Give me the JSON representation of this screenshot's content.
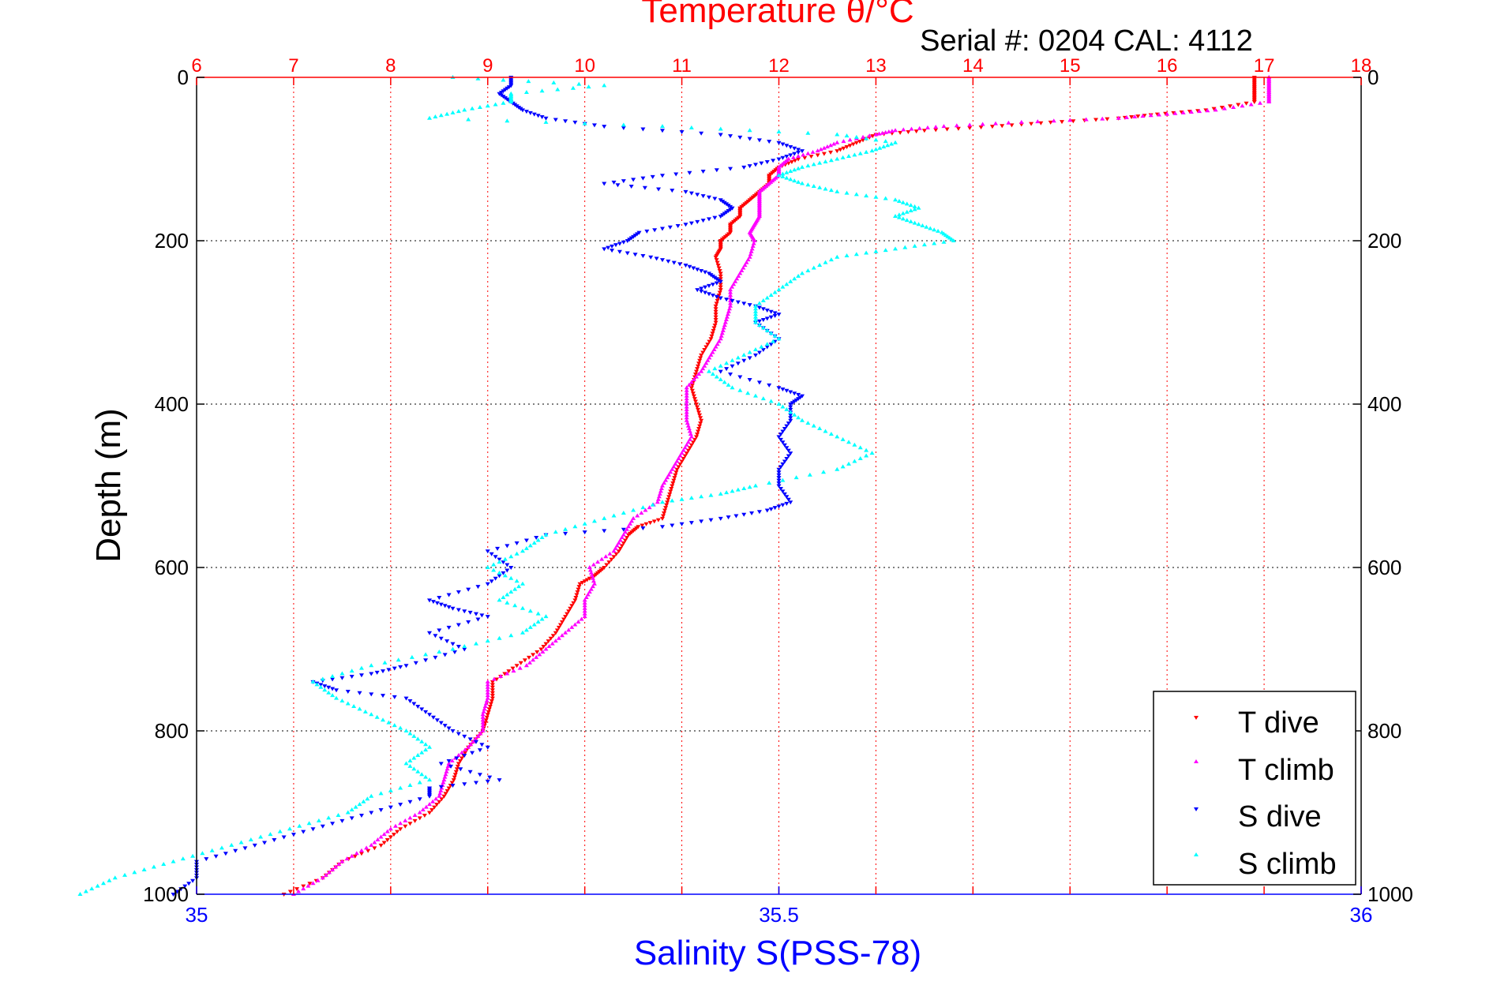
{
  "chart_data": {
    "type": "scatter",
    "title": "Temperature θ/°C",
    "subtitle": "Serial #: 0204  CAL: 4112",
    "ylabel": "Depth (m)",
    "xlabel_top": "Temperature θ/°C",
    "xlabel_bottom": "Salinity S(PSS-78)",
    "top_axis": {
      "quantity": "temperature",
      "range": [
        6,
        18
      ],
      "ticks": [
        "6",
        "7",
        "8",
        "9",
        "10",
        "11",
        "12",
        "13",
        "14",
        "15",
        "16",
        "17",
        "18"
      ],
      "color": "#ff0000"
    },
    "bottom_axis": {
      "quantity": "salinity",
      "range": [
        35,
        36
      ],
      "ticks": [
        "35",
        "35.5",
        "36"
      ],
      "color": "#0000ff"
    },
    "y_axis": {
      "range": [
        0,
        1000
      ],
      "inverted": true,
      "ticks": [
        "0",
        "200",
        "400",
        "600",
        "800",
        "1000"
      ]
    },
    "grid": true,
    "legend_position": "bottom-right",
    "series": [
      {
        "name": "T dive",
        "axis": "temperature",
        "color": "#ff0000",
        "marker": "triangle-down",
        "points": [
          [
            0,
            16.9
          ],
          [
            10,
            16.9
          ],
          [
            20,
            16.9
          ],
          [
            30,
            16.9
          ],
          [
            40,
            16.4
          ],
          [
            45,
            15.9
          ],
          [
            50,
            15.5
          ],
          [
            55,
            14.8
          ],
          [
            60,
            14.2
          ],
          [
            65,
            13.5
          ],
          [
            70,
            13.0
          ],
          [
            80,
            12.8
          ],
          [
            90,
            12.6
          ],
          [
            100,
            12.2
          ],
          [
            110,
            12.0
          ],
          [
            120,
            11.9
          ],
          [
            130,
            11.9
          ],
          [
            140,
            11.8
          ],
          [
            150,
            11.7
          ],
          [
            160,
            11.6
          ],
          [
            170,
            11.6
          ],
          [
            180,
            11.5
          ],
          [
            190,
            11.5
          ],
          [
            200,
            11.4
          ],
          [
            210,
            11.4
          ],
          [
            220,
            11.35
          ],
          [
            240,
            11.4
          ],
          [
            260,
            11.4
          ],
          [
            280,
            11.35
          ],
          [
            300,
            11.35
          ],
          [
            320,
            11.3
          ],
          [
            340,
            11.2
          ],
          [
            360,
            11.15
          ],
          [
            380,
            11.1
          ],
          [
            400,
            11.15
          ],
          [
            420,
            11.2
          ],
          [
            440,
            11.15
          ],
          [
            460,
            11.05
          ],
          [
            480,
            10.95
          ],
          [
            500,
            10.9
          ],
          [
            520,
            10.85
          ],
          [
            540,
            10.8
          ],
          [
            550,
            10.55
          ],
          [
            560,
            10.45
          ],
          [
            580,
            10.35
          ],
          [
            600,
            10.2
          ],
          [
            610,
            10.1
          ],
          [
            620,
            9.95
          ],
          [
            640,
            9.9
          ],
          [
            660,
            9.8
          ],
          [
            680,
            9.7
          ],
          [
            700,
            9.55
          ],
          [
            720,
            9.3
          ],
          [
            740,
            9.05
          ],
          [
            760,
            9.05
          ],
          [
            780,
            9.0
          ],
          [
            800,
            8.95
          ],
          [
            820,
            8.8
          ],
          [
            840,
            8.7
          ],
          [
            860,
            8.65
          ],
          [
            880,
            8.55
          ],
          [
            900,
            8.4
          ],
          [
            920,
            8.1
          ],
          [
            940,
            7.9
          ],
          [
            960,
            7.5
          ],
          [
            980,
            7.3
          ],
          [
            1000,
            6.9
          ]
        ]
      },
      {
        "name": "T climb",
        "axis": "temperature",
        "color": "#ff00ff",
        "marker": "triangle-up",
        "points": [
          [
            0,
            17.05
          ],
          [
            10,
            17.05
          ],
          [
            20,
            17.05
          ],
          [
            30,
            17.05
          ],
          [
            40,
            16.5
          ],
          [
            45,
            16.0
          ],
          [
            50,
            15.5
          ],
          [
            55,
            14.5
          ],
          [
            60,
            13.7
          ],
          [
            65,
            13.2
          ],
          [
            70,
            13.0
          ],
          [
            80,
            12.6
          ],
          [
            90,
            12.4
          ],
          [
            100,
            12.1
          ],
          [
            110,
            12.0
          ],
          [
            120,
            12.0
          ],
          [
            130,
            11.9
          ],
          [
            140,
            11.8
          ],
          [
            150,
            11.8
          ],
          [
            160,
            11.8
          ],
          [
            170,
            11.8
          ],
          [
            180,
            11.75
          ],
          [
            190,
            11.7
          ],
          [
            200,
            11.75
          ],
          [
            220,
            11.7
          ],
          [
            240,
            11.6
          ],
          [
            260,
            11.5
          ],
          [
            280,
            11.5
          ],
          [
            300,
            11.45
          ],
          [
            320,
            11.4
          ],
          [
            340,
            11.3
          ],
          [
            360,
            11.2
          ],
          [
            380,
            11.05
          ],
          [
            400,
            11.05
          ],
          [
            420,
            11.05
          ],
          [
            440,
            11.1
          ],
          [
            460,
            11.0
          ],
          [
            480,
            10.9
          ],
          [
            500,
            10.8
          ],
          [
            520,
            10.75
          ],
          [
            540,
            10.5
          ],
          [
            560,
            10.4
          ],
          [
            580,
            10.3
          ],
          [
            600,
            10.05
          ],
          [
            620,
            10.1
          ],
          [
            640,
            10.0
          ],
          [
            660,
            10.0
          ],
          [
            680,
            9.8
          ],
          [
            700,
            9.6
          ],
          [
            720,
            9.4
          ],
          [
            740,
            9.0
          ],
          [
            760,
            9.0
          ],
          [
            780,
            8.95
          ],
          [
            800,
            8.95
          ],
          [
            820,
            8.8
          ],
          [
            840,
            8.6
          ],
          [
            860,
            8.55
          ],
          [
            880,
            8.5
          ],
          [
            900,
            8.3
          ],
          [
            920,
            8.0
          ],
          [
            940,
            7.8
          ],
          [
            960,
            7.5
          ],
          [
            980,
            7.3
          ],
          [
            1000,
            7.0
          ]
        ]
      },
      {
        "name": "S dive",
        "axis": "salinity",
        "color": "#0000ff",
        "marker": "triangle-down",
        "points": [
          [
            0,
            35.27
          ],
          [
            10,
            35.27
          ],
          [
            20,
            35.26
          ],
          [
            30,
            35.27
          ],
          [
            40,
            35.28
          ],
          [
            50,
            35.3
          ],
          [
            60,
            35.35
          ],
          [
            70,
            35.45
          ],
          [
            80,
            35.5
          ],
          [
            90,
            35.52
          ],
          [
            100,
            35.5
          ],
          [
            110,
            35.47
          ],
          [
            120,
            35.4
          ],
          [
            130,
            35.35
          ],
          [
            140,
            35.42
          ],
          [
            150,
            35.45
          ],
          [
            160,
            35.46
          ],
          [
            170,
            35.45
          ],
          [
            180,
            35.42
          ],
          [
            190,
            35.38
          ],
          [
            200,
            35.37
          ],
          [
            210,
            35.35
          ],
          [
            220,
            35.39
          ],
          [
            230,
            35.42
          ],
          [
            240,
            35.44
          ],
          [
            250,
            35.45
          ],
          [
            260,
            35.43
          ],
          [
            270,
            35.45
          ],
          [
            280,
            35.48
          ],
          [
            290,
            35.5
          ],
          [
            300,
            35.48
          ],
          [
            320,
            35.5
          ],
          [
            340,
            35.48
          ],
          [
            360,
            35.45
          ],
          [
            380,
            35.5
          ],
          [
            390,
            35.52
          ],
          [
            400,
            35.51
          ],
          [
            420,
            35.51
          ],
          [
            440,
            35.5
          ],
          [
            460,
            35.51
          ],
          [
            480,
            35.5
          ],
          [
            500,
            35.5
          ],
          [
            520,
            35.51
          ],
          [
            530,
            35.49
          ],
          [
            540,
            35.45
          ],
          [
            550,
            35.4
          ],
          [
            560,
            35.3
          ],
          [
            580,
            35.25
          ],
          [
            600,
            35.27
          ],
          [
            620,
            35.25
          ],
          [
            640,
            35.2
          ],
          [
            650,
            35.22
          ],
          [
            660,
            35.25
          ],
          [
            680,
            35.2
          ],
          [
            700,
            35.23
          ],
          [
            720,
            35.18
          ],
          [
            730,
            35.15
          ],
          [
            740,
            35.1
          ],
          [
            750,
            35.12
          ],
          [
            760,
            35.18
          ],
          [
            780,
            35.2
          ],
          [
            800,
            35.22
          ],
          [
            820,
            35.25
          ],
          [
            840,
            35.21
          ],
          [
            860,
            35.26
          ],
          [
            870,
            35.2
          ],
          [
            880,
            35.2
          ],
          [
            900,
            35.15
          ],
          [
            920,
            35.1
          ],
          [
            940,
            35.05
          ],
          [
            960,
            35.0
          ],
          [
            980,
            35.0
          ],
          [
            1000,
            34.98
          ]
        ]
      },
      {
        "name": "S climb",
        "axis": "salinity",
        "color": "#00ffff",
        "marker": "triangle-up",
        "points": [
          [
            0,
            35.22
          ],
          [
            10,
            35.35
          ],
          [
            20,
            35.27
          ],
          [
            30,
            35.27
          ],
          [
            40,
            35.23
          ],
          [
            50,
            35.2
          ],
          [
            60,
            35.4
          ],
          [
            70,
            35.55
          ],
          [
            80,
            35.6
          ],
          [
            90,
            35.58
          ],
          [
            100,
            35.55
          ],
          [
            110,
            35.52
          ],
          [
            120,
            35.5
          ],
          [
            130,
            35.52
          ],
          [
            140,
            35.55
          ],
          [
            150,
            35.6
          ],
          [
            160,
            35.62
          ],
          [
            170,
            35.6
          ],
          [
            180,
            35.62
          ],
          [
            190,
            35.64
          ],
          [
            200,
            35.65
          ],
          [
            210,
            35.6
          ],
          [
            220,
            35.55
          ],
          [
            240,
            35.52
          ],
          [
            260,
            35.5
          ],
          [
            280,
            35.48
          ],
          [
            300,
            35.48
          ],
          [
            320,
            35.5
          ],
          [
            340,
            35.47
          ],
          [
            360,
            35.44
          ],
          [
            380,
            35.46
          ],
          [
            400,
            35.5
          ],
          [
            420,
            35.52
          ],
          [
            440,
            35.55
          ],
          [
            460,
            35.58
          ],
          [
            480,
            35.55
          ],
          [
            500,
            35.48
          ],
          [
            510,
            35.45
          ],
          [
            520,
            35.4
          ],
          [
            540,
            35.35
          ],
          [
            560,
            35.3
          ],
          [
            580,
            35.28
          ],
          [
            600,
            35.25
          ],
          [
            620,
            35.28
          ],
          [
            640,
            35.26
          ],
          [
            660,
            35.3
          ],
          [
            680,
            35.28
          ],
          [
            700,
            35.22
          ],
          [
            720,
            35.15
          ],
          [
            740,
            35.1
          ],
          [
            760,
            35.12
          ],
          [
            780,
            35.15
          ],
          [
            800,
            35.18
          ],
          [
            820,
            35.2
          ],
          [
            840,
            35.18
          ],
          [
            860,
            35.2
          ],
          [
            880,
            35.15
          ],
          [
            900,
            35.13
          ],
          [
            920,
            35.08
          ],
          [
            940,
            35.03
          ],
          [
            960,
            34.98
          ],
          [
            980,
            34.93
          ],
          [
            1000,
            34.9
          ]
        ]
      }
    ]
  }
}
